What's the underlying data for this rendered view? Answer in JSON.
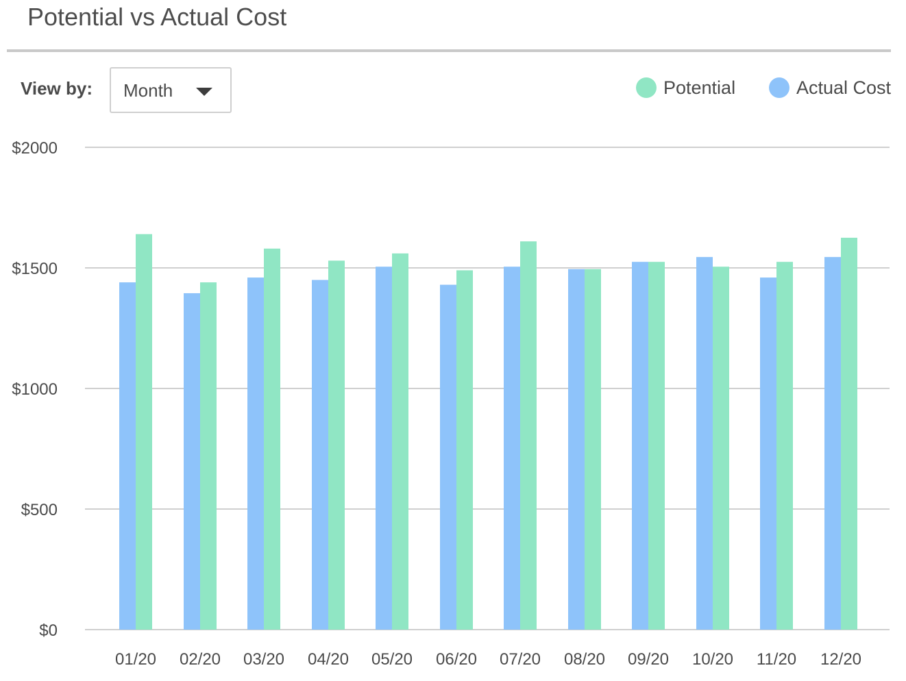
{
  "header": {
    "title": "Potential vs Actual Cost"
  },
  "controls": {
    "view_by_label": "View by:",
    "view_by_value": "Month"
  },
  "legend": [
    {
      "label": "Potential",
      "color": "#90e6c4"
    },
    {
      "label": "Actual Cost",
      "color": "#8ec3fa"
    }
  ],
  "chart_data": {
    "type": "bar",
    "categories": [
      "01/20",
      "02/20",
      "03/20",
      "04/20",
      "05/20",
      "06/20",
      "07/20",
      "08/20",
      "09/20",
      "10/20",
      "11/20",
      "12/20"
    ],
    "series": [
      {
        "name": "Actual Cost",
        "color": "#8ec3fa",
        "values": [
          1440,
          1395,
          1460,
          1450,
          1505,
          1430,
          1505,
          1495,
          1525,
          1545,
          1460,
          1545
        ]
      },
      {
        "name": "Potential",
        "color": "#90e6c4",
        "values": [
          1640,
          1440,
          1580,
          1530,
          1560,
          1490,
          1610,
          1495,
          1525,
          1505,
          1525,
          1625
        ]
      }
    ],
    "yticks": [
      "$0",
      "$500",
      "$1000",
      "$1500",
      "$2000"
    ],
    "ytick_values": [
      0,
      500,
      1000,
      1500,
      2000
    ],
    "ylim": [
      0,
      2000
    ],
    "grid": true,
    "legend_position": "top-right"
  }
}
